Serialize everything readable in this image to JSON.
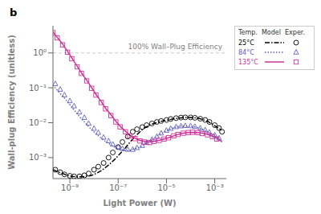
{
  "chart_data": {
    "type": "line",
    "title": "b",
    "xlabel": "Light Power (W)",
    "ylabel": "Wall-plug Efficiency (unitless)",
    "annotation": "100% Wall–Plug Efficiency",
    "hline": 1.0,
    "log": true,
    "grid": false,
    "legend": "right",
    "legend_title": "Temp.  Model  Exper.",
    "xlim": [
      2e-10,
      0.003
    ],
    "ylim": [
      0.00025,
      6
    ],
    "xticks": [
      {
        "value": 1e-09,
        "label": "10⁻⁹"
      },
      {
        "value": 1e-07,
        "label": "10⁻⁷"
      },
      {
        "value": 1e-05,
        "label": "10⁻⁵"
      },
      {
        "value": 0.001,
        "label": "10⁻³"
      }
    ],
    "yticks": [
      {
        "value": 0.001,
        "label": "10⁻³"
      },
      {
        "value": 0.01,
        "label": "10⁻²"
      },
      {
        "value": 0.1,
        "label": "10⁻¹"
      },
      {
        "value": 1,
        "label": "10⁰"
      }
    ],
    "series": [
      {
        "name": "25°C",
        "color": "#000000",
        "line_style": "dashdot",
        "marker": "circle",
        "model": {
          "x": [
            2e-10,
            3e-10,
            5e-10,
            8e-10,
            1.2e-09,
            2e-09,
            3e-09,
            5e-09,
            8e-09,
            1.2e-08,
            2e-08,
            3e-08,
            5e-08,
            8e-08,
            1.2e-07,
            2e-07,
            3e-07,
            5e-07,
            8e-07,
            1.2e-06,
            2e-06,
            3e-06,
            5e-06,
            8e-06,
            1.2e-05,
            2e-05,
            3e-05,
            5e-05,
            8e-05,
            0.00012,
            0.0002,
            0.0003,
            0.0005,
            0.0008,
            0.0012,
            0.002
          ],
          "values": [
            0.00045,
            0.0004,
            0.00035,
            0.00031,
            0.00029,
            0.00028,
            0.00028,
            0.00029,
            0.00031,
            0.00035,
            0.00042,
            0.00052,
            0.0007,
            0.00095,
            0.0013,
            0.0019,
            0.0027,
            0.004,
            0.0055,
            0.007,
            0.0085,
            0.0095,
            0.0105,
            0.0115,
            0.012,
            0.013,
            0.0135,
            0.014,
            0.0142,
            0.014,
            0.0135,
            0.0125,
            0.011,
            0.009,
            0.0075,
            0.006
          ]
        },
        "experiment": {
          "x": [
            2.5e-10,
            4e-10,
            6e-10,
            1e-09,
            1.5e-09,
            2.5e-09,
            4e-09,
            6e-09,
            1e-08,
            1.5e-08,
            2.5e-08,
            4e-08,
            6e-08,
            1e-07,
            1.5e-07,
            2.5e-07,
            4e-07,
            6e-07,
            1e-06,
            1.5e-06,
            2.5e-06,
            4e-06,
            6e-06,
            1e-05,
            1.5e-05,
            2.5e-05,
            4e-05,
            6e-05,
            0.0001,
            0.00015,
            0.00025,
            0.0004,
            0.0006,
            0.001,
            0.0015,
            0.002
          ],
          "values": [
            0.00045,
            0.00038,
            0.00033,
            0.0003,
            0.00029,
            0.00029,
            0.00031,
            0.00035,
            0.00045,
            0.00055,
            0.0007,
            0.001,
            0.0014,
            0.002,
            0.0028,
            0.004,
            0.0055,
            0.0065,
            0.0075,
            0.0085,
            0.0095,
            0.0105,
            0.0112,
            0.012,
            0.0128,
            0.0135,
            0.014,
            0.0142,
            0.0142,
            0.0138,
            0.013,
            0.012,
            0.0105,
            0.0085,
            0.007,
            0.0055
          ]
        }
      },
      {
        "name": "84°C",
        "color": "#6060bb",
        "line_style": "dotted",
        "marker": "triangle",
        "model": {
          "x": [
            2e-10,
            3e-10,
            5e-10,
            8e-10,
            1.2e-09,
            2e-09,
            3e-09,
            5e-09,
            8e-09,
            1.2e-08,
            2e-08,
            3e-08,
            5e-08,
            8e-08,
            1.2e-07,
            2e-07,
            3e-07,
            5e-07,
            8e-07,
            1.2e-06,
            2e-06,
            3e-06,
            5e-06,
            8e-06,
            1.2e-05,
            2e-05,
            3e-05,
            5e-05,
            8e-05,
            0.00012,
            0.0002,
            0.0003,
            0.0005,
            0.0008,
            0.0012,
            0.002
          ],
          "values": [
            0.12,
            0.085,
            0.058,
            0.04,
            0.028,
            0.018,
            0.013,
            0.0088,
            0.0063,
            0.0048,
            0.0036,
            0.0029,
            0.0023,
            0.0019,
            0.0017,
            0.0016,
            0.0016,
            0.0018,
            0.002,
            0.0024,
            0.003,
            0.0036,
            0.0045,
            0.0054,
            0.0062,
            0.0072,
            0.0077,
            0.008,
            0.008,
            0.0078,
            0.0072,
            0.0065,
            0.0055,
            0.0046,
            0.0038,
            0.003
          ]
        },
        "experiment": {
          "x": [
            2.5e-10,
            4e-10,
            6e-10,
            1e-09,
            1.5e-09,
            2.5e-09,
            4e-09,
            6e-09,
            1e-08,
            1.5e-08,
            2.5e-08,
            4e-08,
            6e-08,
            1e-07,
            1.5e-07,
            2.5e-07,
            4e-07,
            6e-07,
            1e-06,
            1.5e-06,
            2.5e-06,
            4e-06,
            6e-06,
            1e-05,
            1.5e-05,
            2.5e-05,
            4e-05,
            6e-05,
            0.0001,
            0.00015,
            0.00025,
            0.0004,
            0.0006,
            0.001,
            0.0015
          ],
          "values": [
            0.13,
            0.09,
            0.062,
            0.042,
            0.03,
            0.02,
            0.014,
            0.0095,
            0.0068,
            0.0052,
            0.0038,
            0.003,
            0.0024,
            0.002,
            0.0018,
            0.0017,
            0.0017,
            0.0019,
            0.0022,
            0.0027,
            0.0033,
            0.004,
            0.005,
            0.006,
            0.0068,
            0.0076,
            0.008,
            0.0082,
            0.0081,
            0.0077,
            0.007,
            0.0062,
            0.0053,
            0.0044,
            0.0036
          ]
        }
      },
      {
        "name": "135°C",
        "color": "#cc3399",
        "line_style": "solid",
        "marker": "square",
        "model": {
          "x": [
            2e-10,
            3e-10,
            5e-10,
            8e-10,
            1.2e-09,
            2e-09,
            3e-09,
            5e-09,
            8e-09,
            1.2e-08,
            2e-08,
            3e-08,
            5e-08,
            8e-08,
            1.2e-07,
            2e-07,
            3e-07,
            5e-07,
            8e-07,
            1.2e-06,
            2e-06,
            3e-06,
            5e-06,
            8e-06,
            1.2e-05,
            2e-05,
            3e-05,
            5e-05,
            8e-05,
            0.00012,
            0.0002,
            0.0003,
            0.0005,
            0.0008,
            0.0012,
            0.002
          ],
          "values": [
            4.0,
            2.8,
            1.8,
            1.1,
            0.72,
            0.42,
            0.27,
            0.165,
            0.1,
            0.065,
            0.04,
            0.026,
            0.017,
            0.011,
            0.008,
            0.0057,
            0.0044,
            0.0036,
            0.0031,
            0.0029,
            0.0028,
            0.0029,
            0.0031,
            0.0034,
            0.0037,
            0.0042,
            0.0046,
            0.005,
            0.0052,
            0.0053,
            0.0052,
            0.005,
            0.0046,
            0.0041,
            0.0036,
            0.0028
          ]
        },
        "experiment": {
          "x": [
            2e-10,
            3e-10,
            5e-10,
            8e-10,
            1.2e-09,
            2e-09,
            3e-09,
            5e-09,
            8e-09,
            1.2e-08,
            2e-08,
            3e-08,
            5e-08,
            8e-08,
            1.2e-07,
            2e-07,
            3e-07,
            5e-07,
            8e-07,
            1.2e-06,
            2e-06,
            3e-06,
            5e-06,
            8e-06,
            1.2e-05,
            2e-05,
            3e-05,
            5e-05,
            8e-05,
            0.00012,
            0.0002,
            0.0003,
            0.0005,
            0.0008,
            0.0012
          ],
          "values": [
            3.8,
            2.7,
            1.7,
            1.05,
            0.68,
            0.4,
            0.26,
            0.158,
            0.097,
            0.062,
            0.038,
            0.025,
            0.016,
            0.0105,
            0.0076,
            0.0055,
            0.0042,
            0.0035,
            0.003,
            0.0028,
            0.0027,
            0.0029,
            0.0031,
            0.0034,
            0.0037,
            0.0042,
            0.0046,
            0.005,
            0.0052,
            0.0053,
            0.0052,
            0.0049,
            0.0045,
            0.004,
            0.0034
          ]
        }
      }
    ]
  }
}
